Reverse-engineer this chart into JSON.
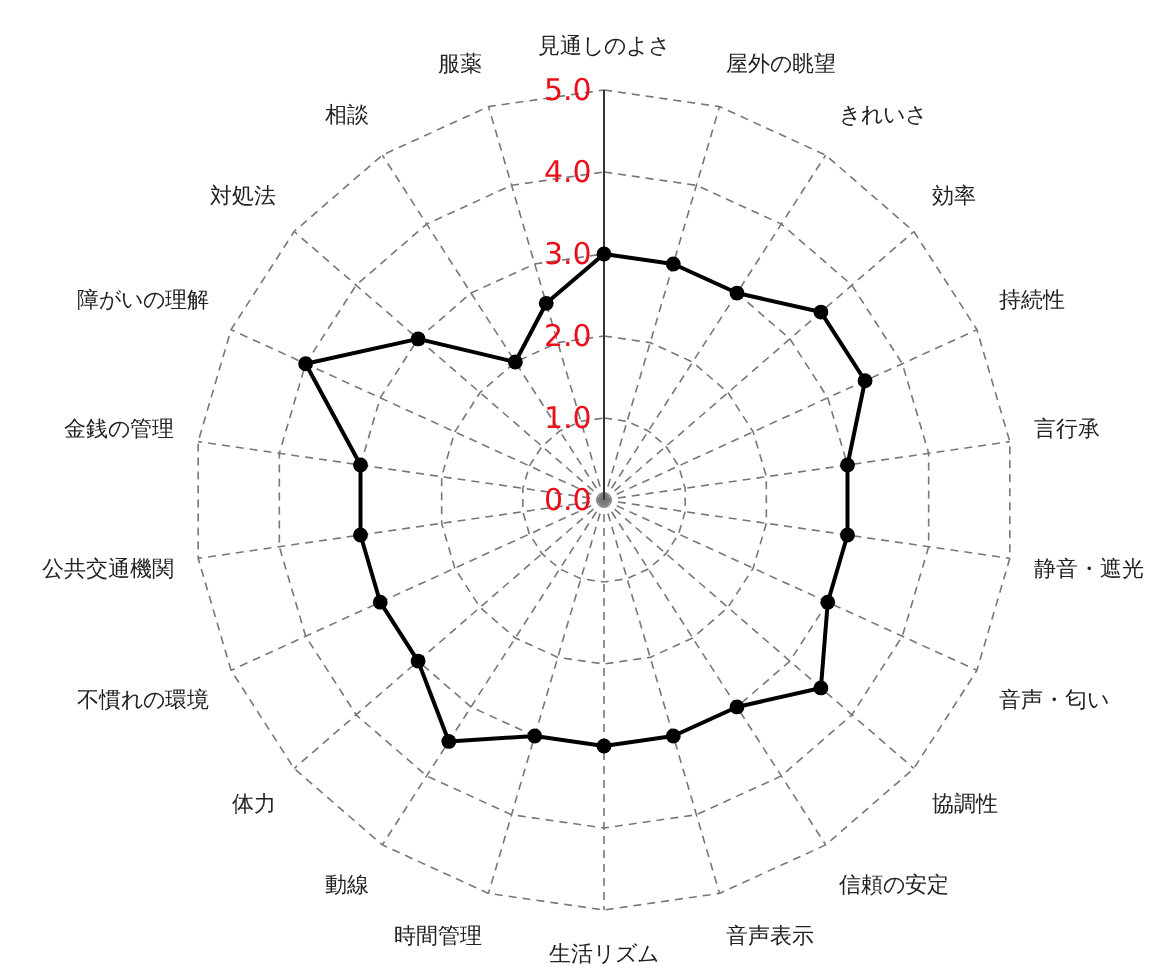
{
  "chart_data": {
    "type": "radar",
    "categories": [
      "見通しのよさ",
      "屋外の眺望",
      "きれいさ",
      "効率",
      "持続性",
      "言行承",
      "静音・遮光",
      "音声・匂い",
      "協調性",
      "信頼の安定",
      "音声表示",
      "生活リズム",
      "時間管理",
      "動線",
      "体力",
      "不慣れの環境",
      "公共交通機関",
      "金銭の管理",
      "障がいの理解",
      "対処法",
      "相談",
      "服薬"
    ],
    "series": [
      {
        "color": "#000000",
        "values": [
          3.0,
          3.0,
          3.0,
          3.5,
          3.5,
          3.0,
          3.0,
          3.0,
          3.5,
          3.0,
          3.0,
          3.0,
          3.0,
          3.5,
          3.0,
          3.0,
          3.0,
          3.0,
          4.0,
          3.0,
          2.0,
          2.5
        ]
      }
    ],
    "ylim": [
      0,
      5
    ],
    "yticks": [
      {
        "value": 0,
        "label": "0.0"
      },
      {
        "value": 1,
        "label": "1.0"
      },
      {
        "value": 2,
        "label": "2.0"
      },
      {
        "value": 3,
        "label": "3.0"
      },
      {
        "value": 4,
        "label": "4.0"
      },
      {
        "value": 5,
        "label": "5.0"
      }
    ],
    "grid": true,
    "marker": "circle",
    "line_style": "solid"
  }
}
